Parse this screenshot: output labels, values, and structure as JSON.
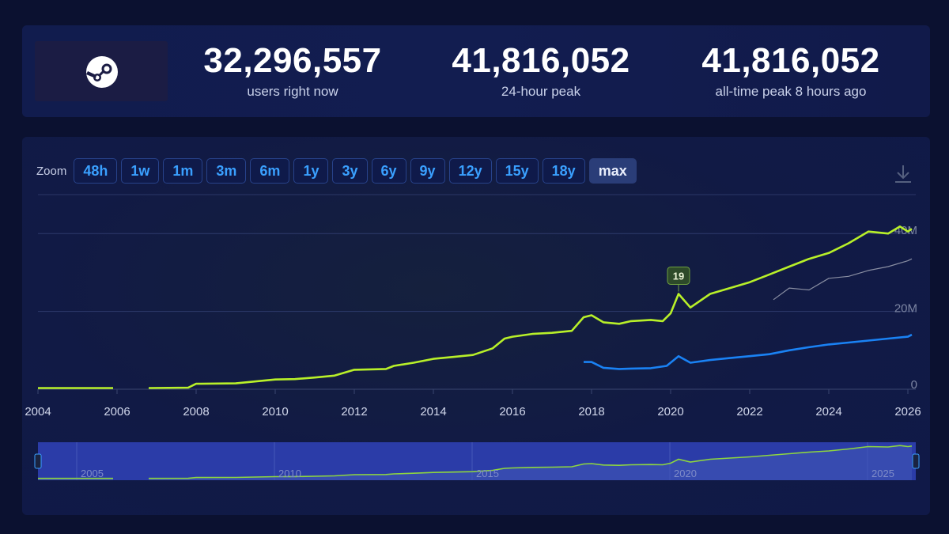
{
  "stats": [
    {
      "value": "32,296,557",
      "label": "users right now"
    },
    {
      "value": "41,816,052",
      "label": "24-hour peak"
    },
    {
      "value": "41,816,052",
      "label": "all-time peak 8 hours ago"
    }
  ],
  "zoom": {
    "label": "Zoom",
    "buttons": [
      "48h",
      "1w",
      "1m",
      "3m",
      "6m",
      "1y",
      "3y",
      "6y",
      "9y",
      "12y",
      "15y",
      "18y",
      "max"
    ],
    "active": "max"
  },
  "colors": {
    "users": "#b8f029",
    "in_game": "#1a82f4",
    "gray_series": "#8a8fa3",
    "navigator": "#2b3ca8"
  },
  "chart_data": {
    "type": "line",
    "x_ticks": [
      "2004",
      "2006",
      "2008",
      "2010",
      "2012",
      "2014",
      "2016",
      "2018",
      "2020",
      "2022",
      "2024",
      "2026"
    ],
    "y_ticks": [
      "0",
      "20M",
      "40M"
    ],
    "ylim": [
      0,
      50000000
    ],
    "xlim": [
      2004,
      2026.2
    ],
    "annotation": {
      "x": 2020.2,
      "label": "19"
    },
    "series": [
      {
        "color": "#b8f029",
        "segments": [
          [
            [
              2004.0,
              0.3
            ],
            [
              2005.9,
              0.3
            ]
          ],
          [
            [
              2006.8,
              0.3
            ],
            [
              2007.8,
              0.4
            ],
            [
              2008.0,
              1.4
            ],
            [
              2009.0,
              1.5
            ],
            [
              2010.0,
              2.5
            ],
            [
              2010.5,
              2.6
            ],
            [
              2011.0,
              3.0
            ],
            [
              2011.5,
              3.5
            ],
            [
              2012.0,
              5.0
            ],
            [
              2012.8,
              5.2
            ],
            [
              2013.0,
              6.0
            ],
            [
              2013.5,
              6.8
            ],
            [
              2014.0,
              7.8
            ],
            [
              2014.5,
              8.3
            ],
            [
              2015.0,
              8.8
            ],
            [
              2015.5,
              10.5
            ],
            [
              2015.8,
              13.0
            ],
            [
              2016.0,
              13.5
            ],
            [
              2016.5,
              14.2
            ],
            [
              2017.0,
              14.5
            ],
            [
              2017.5,
              15.0
            ],
            [
              2017.8,
              18.5
            ],
            [
              2018.0,
              19.0
            ],
            [
              2018.3,
              17.2
            ],
            [
              2018.7,
              16.8
            ],
            [
              2019.0,
              17.5
            ],
            [
              2019.5,
              17.8
            ],
            [
              2019.8,
              17.5
            ],
            [
              2020.0,
              19.5
            ],
            [
              2020.2,
              24.5
            ],
            [
              2020.5,
              21.0
            ],
            [
              2021.0,
              24.5
            ],
            [
              2021.5,
              26.0
            ],
            [
              2022.0,
              27.5
            ],
            [
              2022.5,
              29.5
            ],
            [
              2023.0,
              31.5
            ],
            [
              2023.5,
              33.5
            ],
            [
              2024.0,
              35.0
            ],
            [
              2024.5,
              37.5
            ],
            [
              2025.0,
              40.5
            ],
            [
              2025.5,
              40.0
            ],
            [
              2025.8,
              41.8
            ],
            [
              2026.0,
              40.5
            ],
            [
              2026.1,
              41.2
            ]
          ]
        ]
      },
      {
        "color": "#1a82f4",
        "segments": [
          [
            [
              2017.8,
              7.0
            ],
            [
              2018.0,
              7.0
            ],
            [
              2018.3,
              5.5
            ],
            [
              2018.7,
              5.2
            ],
            [
              2019.0,
              5.3
            ],
            [
              2019.5,
              5.4
            ],
            [
              2019.9,
              6.0
            ],
            [
              2020.2,
              8.5
            ],
            [
              2020.5,
              6.8
            ],
            [
              2021.0,
              7.5
            ],
            [
              2021.5,
              8.0
            ],
            [
              2022.0,
              8.5
            ],
            [
              2022.5,
              9.0
            ],
            [
              2023.0,
              10.0
            ],
            [
              2023.5,
              10.8
            ],
            [
              2024.0,
              11.5
            ],
            [
              2024.5,
              12.0
            ],
            [
              2025.0,
              12.5
            ],
            [
              2025.5,
              13.0
            ],
            [
              2026.0,
              13.5
            ],
            [
              2026.1,
              14.0
            ]
          ]
        ]
      },
      {
        "color": "#8a8fa3",
        "segments": [
          [
            [
              2022.6,
              23.0
            ],
            [
              2023.0,
              26.0
            ],
            [
              2023.5,
              25.5
            ],
            [
              2024.0,
              28.5
            ],
            [
              2024.5,
              29.0
            ],
            [
              2025.0,
              30.5
            ],
            [
              2025.5,
              31.5
            ],
            [
              2026.0,
              33.0
            ],
            [
              2026.1,
              33.5
            ]
          ]
        ]
      }
    ],
    "navigator": {
      "labels": [
        "2005",
        "2010",
        "2015",
        "2020",
        "2025"
      ]
    }
  }
}
